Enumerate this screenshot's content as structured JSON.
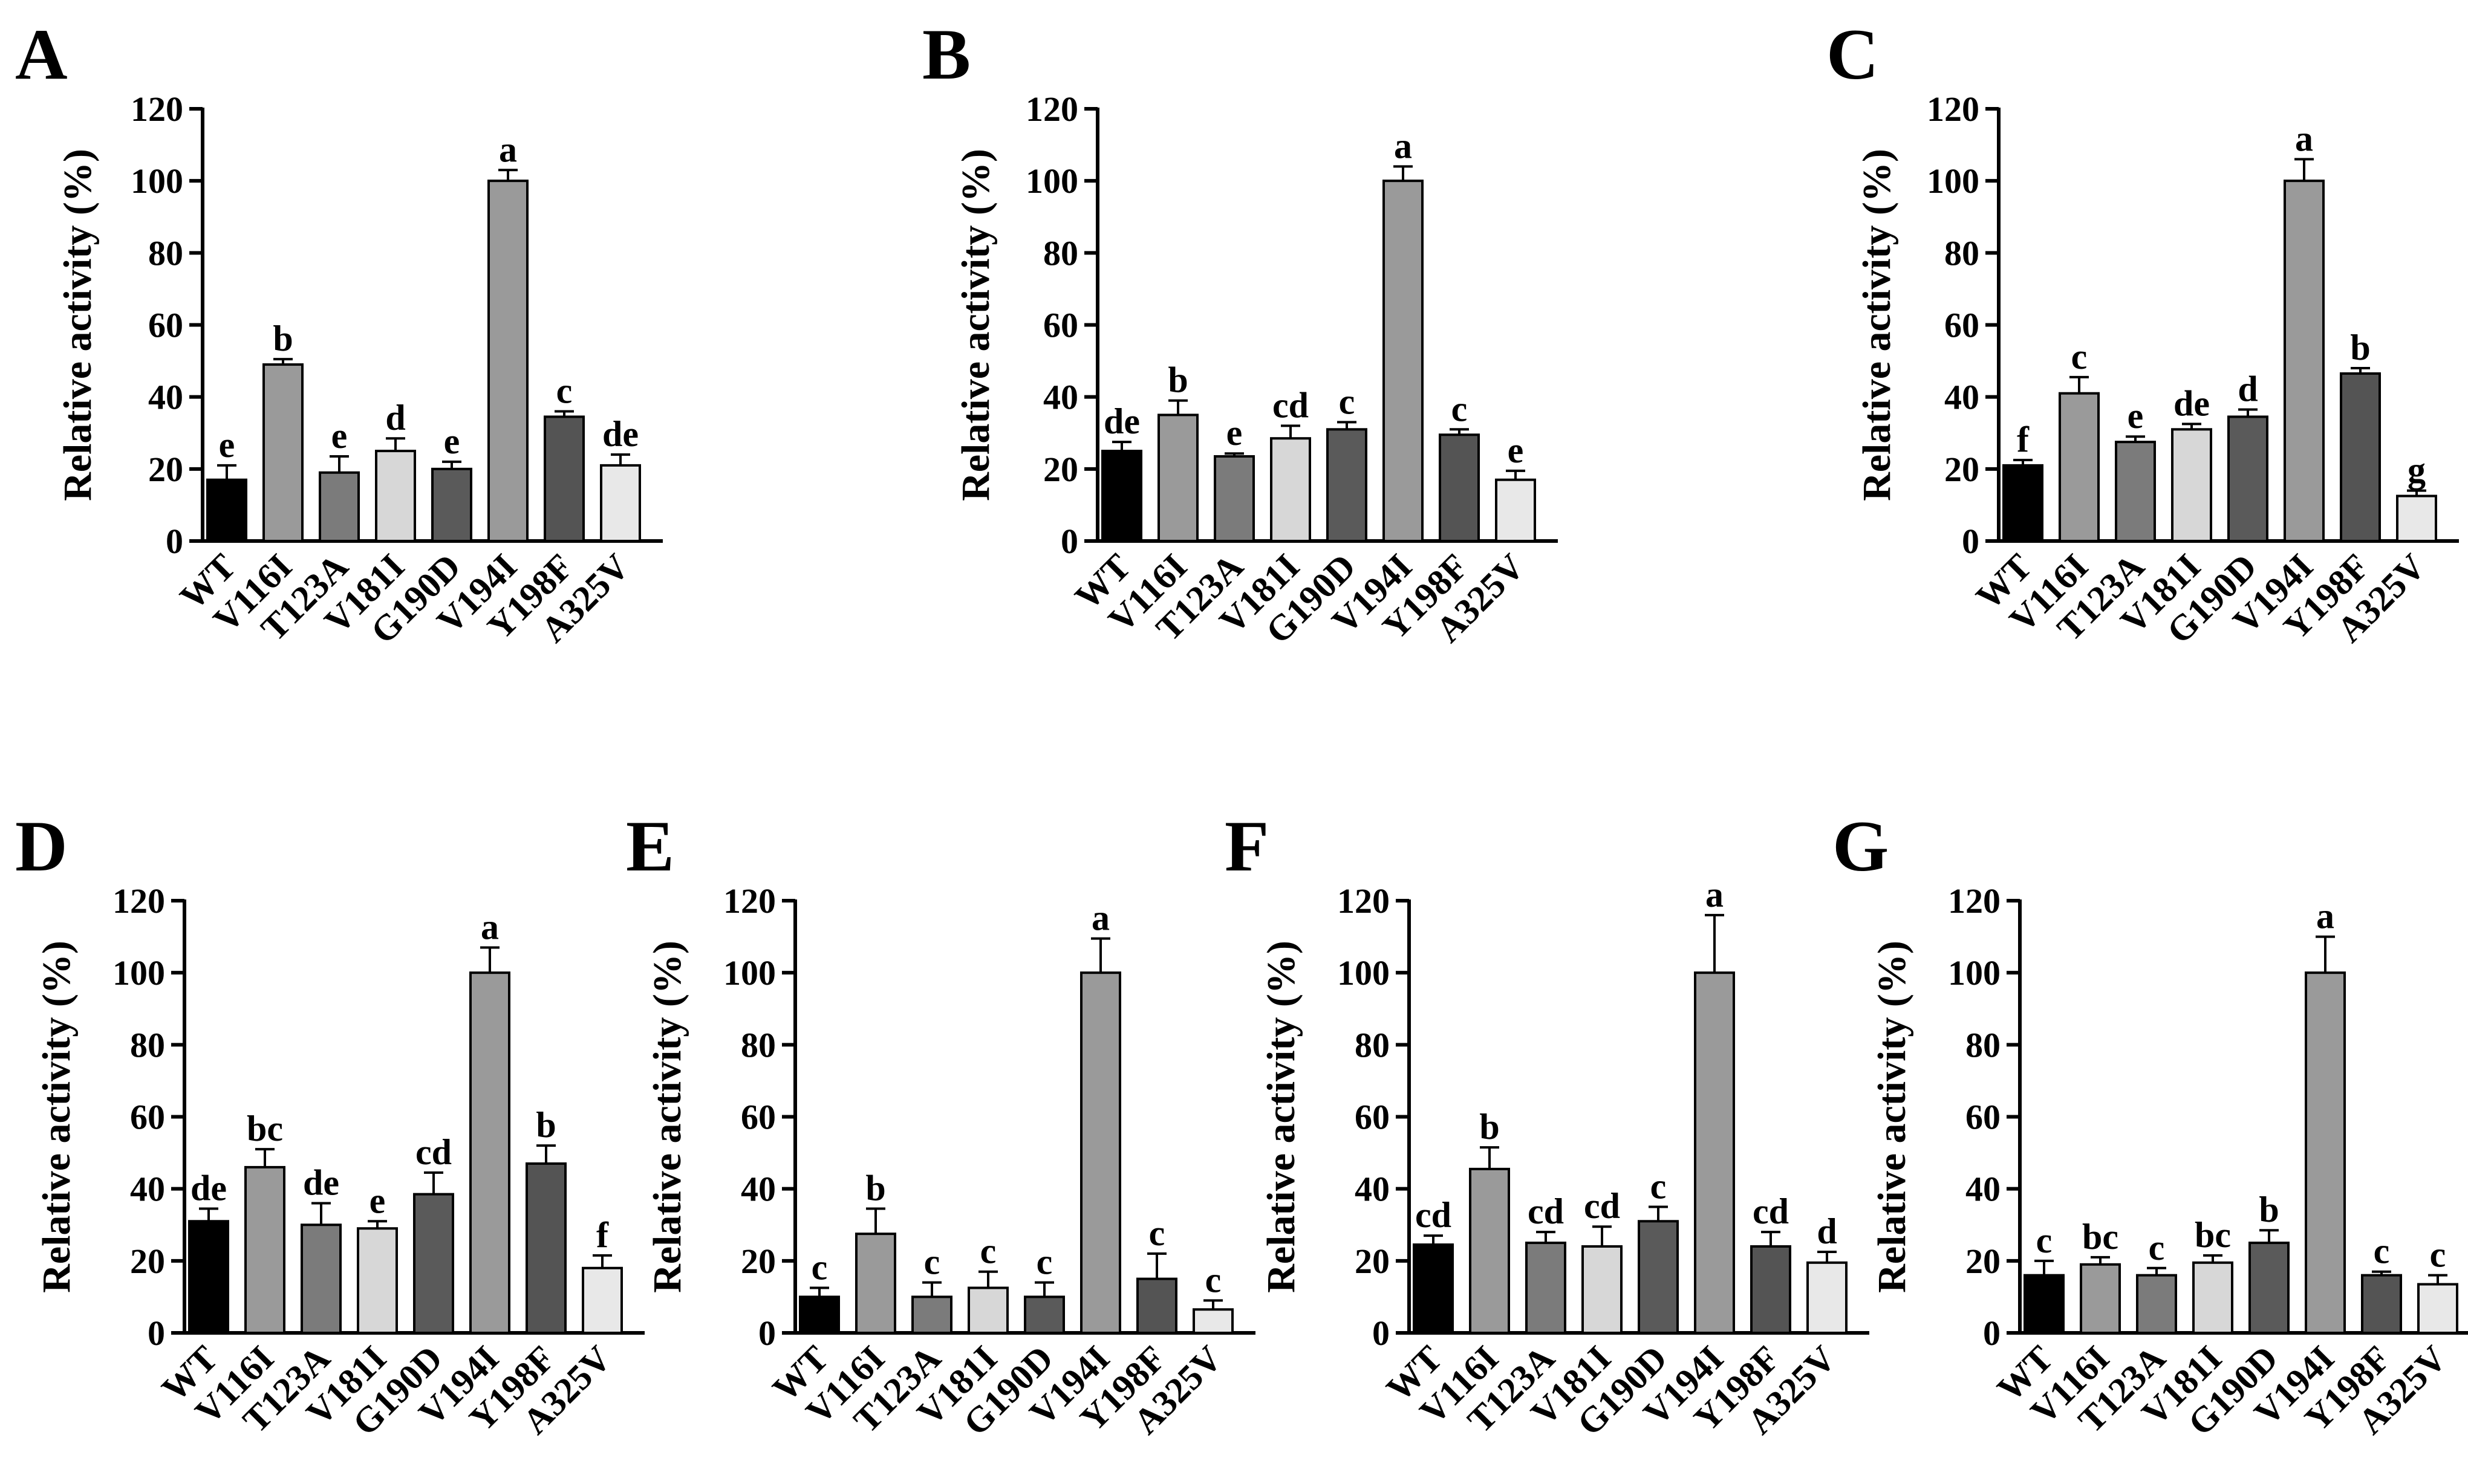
{
  "figure": {
    "colors": [
      "#000000",
      "#9a9a9a",
      "#7b7b7b",
      "#d7d7d7",
      "#5a5a5a",
      "#9a9a9a",
      "#545454",
      "#e8e8e8"
    ],
    "panels": [
      {
        "letter": "A"
      },
      {
        "letter": "B"
      },
      {
        "letter": "C"
      },
      {
        "letter": "D"
      },
      {
        "letter": "E"
      },
      {
        "letter": "F"
      },
      {
        "letter": "G"
      }
    ]
  },
  "chart_data": [
    {
      "panel": "A",
      "type": "bar",
      "ylabel": "Relative activity (%)",
      "ylim": [
        0,
        120
      ],
      "yticks": [
        "0",
        "20",
        "40",
        "60",
        "80",
        "100",
        "120"
      ],
      "categories": [
        "WT",
        "V116I",
        "T123A",
        "V181I",
        "G190D",
        "V194I",
        "Y198F",
        "A325V"
      ],
      "values": [
        17,
        49,
        19,
        25,
        20,
        100,
        34.5,
        21
      ],
      "errors": [
        4,
        1.5,
        4.5,
        3.5,
        2,
        3,
        1.5,
        3
      ],
      "labels": [
        "e",
        "b",
        "e",
        "d",
        "e",
        "a",
        "c",
        "de"
      ]
    },
    {
      "panel": "B",
      "type": "bar",
      "ylabel": "Relative activity (%)",
      "ylim": [
        0,
        120
      ],
      "yticks": [
        "0",
        "20",
        "40",
        "60",
        "80",
        "100",
        "120"
      ],
      "categories": [
        "WT",
        "V116I",
        "T123A",
        "V181I",
        "G190D",
        "V194I",
        "Y198F",
        "A325V"
      ],
      "values": [
        25,
        35,
        23.5,
        28.5,
        31,
        100,
        29.5,
        17
      ],
      "errors": [
        2.5,
        4,
        0.8,
        3.5,
        2,
        4,
        1.5,
        2.5
      ],
      "labels": [
        "de",
        "b",
        "e",
        "cd",
        "c",
        "a",
        "c",
        "e"
      ]
    },
    {
      "panel": "C",
      "type": "bar",
      "ylabel": "Relative activity (%)",
      "ylim": [
        0,
        120
      ],
      "yticks": [
        "0",
        "20",
        "40",
        "60",
        "80",
        "100",
        "120"
      ],
      "categories": [
        "WT",
        "V116I",
        "T123A",
        "V181I",
        "G190D",
        "V194I",
        "Y198F",
        "A325V"
      ],
      "values": [
        21,
        41,
        27.5,
        31,
        34.5,
        100,
        46.5,
        12.5
      ],
      "errors": [
        1.5,
        4.5,
        1.5,
        1.5,
        2,
        6,
        1.5,
        1.5
      ],
      "labels": [
        "f",
        "c",
        "e",
        "de",
        "d",
        "a",
        "b",
        "g"
      ]
    },
    {
      "panel": "D",
      "type": "bar",
      "ylabel": "Relative activity (%)",
      "ylim": [
        0,
        120
      ],
      "yticks": [
        "0",
        "20",
        "40",
        "60",
        "80",
        "100",
        "120"
      ],
      "categories": [
        "WT",
        "V116I",
        "T123A",
        "V181I",
        "G190D",
        "V194I",
        "Y198F",
        "A325V"
      ],
      "values": [
        31,
        46,
        30,
        29,
        38.5,
        100,
        47,
        18
      ],
      "errors": [
        3.5,
        5,
        6,
        2,
        6,
        7,
        5,
        3.5
      ],
      "labels": [
        "de",
        "bc",
        "de",
        "e",
        "cd",
        "a",
        "b",
        "f"
      ]
    },
    {
      "panel": "E",
      "type": "bar",
      "ylabel": "Relative activity (%)",
      "ylim": [
        0,
        120
      ],
      "yticks": [
        "0",
        "20",
        "40",
        "60",
        "80",
        "100",
        "120"
      ],
      "categories": [
        "WT",
        "V116I",
        "T123A",
        "V181I",
        "G190D",
        "V194I",
        "Y198F",
        "A325V"
      ],
      "values": [
        10,
        27.5,
        10,
        12.5,
        10,
        100,
        15,
        6.5
      ],
      "errors": [
        2.5,
        7,
        4,
        4.5,
        4,
        9.5,
        7,
        2.5
      ],
      "labels": [
        "c",
        "b",
        "c",
        "c",
        "c",
        "a",
        "c",
        "c"
      ]
    },
    {
      "panel": "F",
      "type": "bar",
      "ylabel": "Relative activity (%)",
      "ylim": [
        0,
        120
      ],
      "yticks": [
        "0",
        "20",
        "40",
        "60",
        "80",
        "100",
        "120"
      ],
      "categories": [
        "WT",
        "V116I",
        "T123A",
        "V181I",
        "G190D",
        "V194I",
        "Y198F",
        "A325V"
      ],
      "values": [
        24.5,
        45.5,
        25,
        24,
        31,
        100,
        24,
        19.5
      ],
      "errors": [
        2.5,
        6,
        3,
        5.5,
        4,
        16,
        4,
        3
      ],
      "labels": [
        "cd",
        "b",
        "cd",
        "cd",
        "c",
        "a",
        "cd",
        "d"
      ]
    },
    {
      "panel": "G",
      "type": "bar",
      "ylabel": "Relative activity (%)",
      "ylim": [
        0,
        120
      ],
      "yticks": [
        "0",
        "20",
        "40",
        "60",
        "80",
        "100",
        "120"
      ],
      "categories": [
        "WT",
        "V116I",
        "T123A",
        "V181I",
        "G190D",
        "V194I",
        "Y198F",
        "A325V"
      ],
      "values": [
        16,
        19,
        16,
        19.5,
        25,
        100,
        16,
        13.5
      ],
      "errors": [
        4,
        2,
        2,
        2,
        3.5,
        10,
        1,
        2.5
      ],
      "labels": [
        "c",
        "bc",
        "c",
        "bc",
        "b",
        "a",
        "c",
        "c"
      ]
    }
  ]
}
